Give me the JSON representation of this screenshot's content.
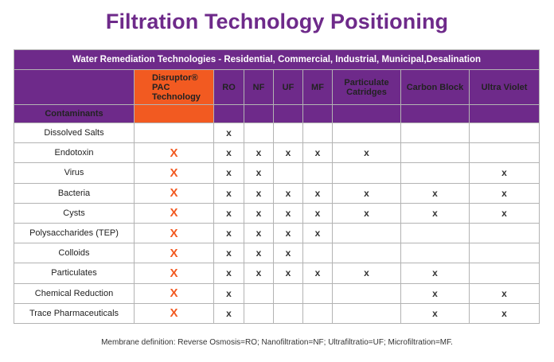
{
  "title": "Filtration Technology Positioning",
  "banner": "Water Remediation Technologies - Residential, Commercial, Industrial, Municipal,Desalination",
  "row_header_label": "Contaminants",
  "columns": [
    {
      "key": "pac",
      "label": "Disruptor®\nPAC\nTechnology"
    },
    {
      "key": "ro",
      "label": "RO"
    },
    {
      "key": "nf",
      "label": "NF"
    },
    {
      "key": "uf",
      "label": "UF"
    },
    {
      "key": "mf",
      "label": "MF"
    },
    {
      "key": "part",
      "label": "Particulate\nCatridges"
    },
    {
      "key": "cb",
      "label": "Carbon Block"
    },
    {
      "key": "uv",
      "label": "Ultra Violet"
    }
  ],
  "marker_pac": "X",
  "marker": "x",
  "rows": [
    {
      "name": "Dissolved Salts",
      "cells": [
        false,
        true,
        false,
        false,
        false,
        false,
        false,
        false
      ]
    },
    {
      "name": "Endotoxin",
      "cells": [
        true,
        true,
        true,
        true,
        true,
        true,
        false,
        false
      ]
    },
    {
      "name": "Virus",
      "cells": [
        true,
        true,
        true,
        false,
        false,
        false,
        false,
        true
      ]
    },
    {
      "name": "Bacteria",
      "cells": [
        true,
        true,
        true,
        true,
        true,
        true,
        true,
        true
      ]
    },
    {
      "name": "Cysts",
      "cells": [
        true,
        true,
        true,
        true,
        true,
        true,
        true,
        true
      ]
    },
    {
      "name": "Polysaccharides (TEP)",
      "cells": [
        true,
        true,
        true,
        true,
        true,
        false,
        false,
        false
      ]
    },
    {
      "name": "Colloids",
      "cells": [
        true,
        true,
        true,
        true,
        false,
        false,
        false,
        false
      ]
    },
    {
      "name": "Particulates",
      "cells": [
        true,
        true,
        true,
        true,
        true,
        true,
        true,
        false
      ]
    },
    {
      "name": "Chemical Reduction",
      "cells": [
        true,
        true,
        false,
        false,
        false,
        false,
        true,
        true
      ]
    },
    {
      "name": "Trace Pharmaceuticals",
      "cells": [
        true,
        true,
        false,
        false,
        false,
        false,
        true,
        true
      ]
    }
  ],
  "footnote": "Membrane definition: Reverse Osmosis=RO; Nanofiltration=NF; Ultrafiltratio=UF;  Microfiltration=MF.",
  "colors": {
    "purple": "#6e2a8a",
    "orange": "#f25a21"
  }
}
